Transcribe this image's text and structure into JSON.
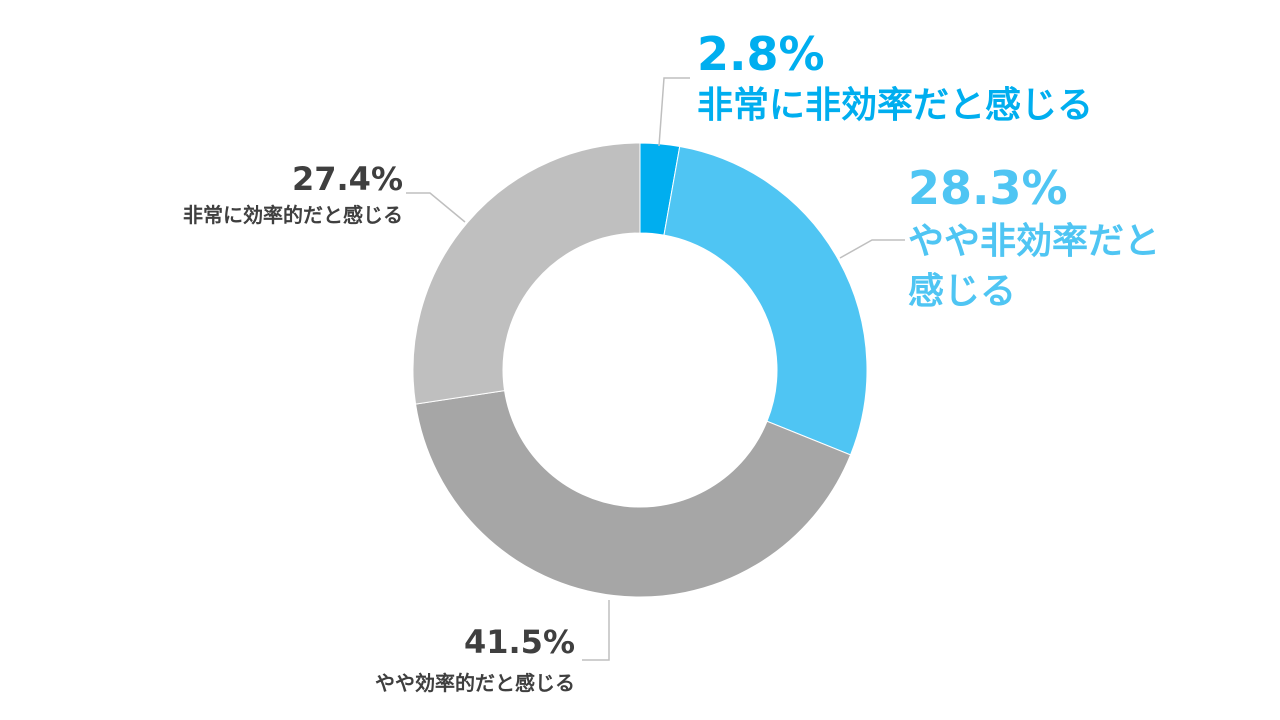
{
  "chart_data": {
    "type": "pie",
    "style": "donut",
    "title": "",
    "categories": [
      "非常に非効率だと感じる",
      "やや非効率だと感じる",
      "やや効率的だと感じる",
      "非常に効率的だと感じる"
    ],
    "values": [
      2.8,
      28.3,
      41.5,
      27.4
    ],
    "value_labels": [
      "2.8%",
      "28.3%",
      "41.5%",
      "27.4%"
    ],
    "colors": [
      "#00aeef",
      "#4fc5f3",
      "#a6a6a6",
      "#bfbfbf"
    ],
    "label_colors": [
      "#00aeef",
      "#4fc5f3",
      "#3f3f3f",
      "#3f3f3f"
    ],
    "legend": "none"
  },
  "labels": {
    "s0": {
      "pct": "2.8%",
      "line1": "非常に非効率だと感じる"
    },
    "s1": {
      "pct": "28.3%",
      "line1": "やや非効率だと",
      "line2": "感じる"
    },
    "s2": {
      "pct": "41.5%",
      "line1": "やや効率的だと感じる"
    },
    "s3": {
      "pct": "27.4%",
      "line1": "非常に効率的だと感じる"
    }
  }
}
